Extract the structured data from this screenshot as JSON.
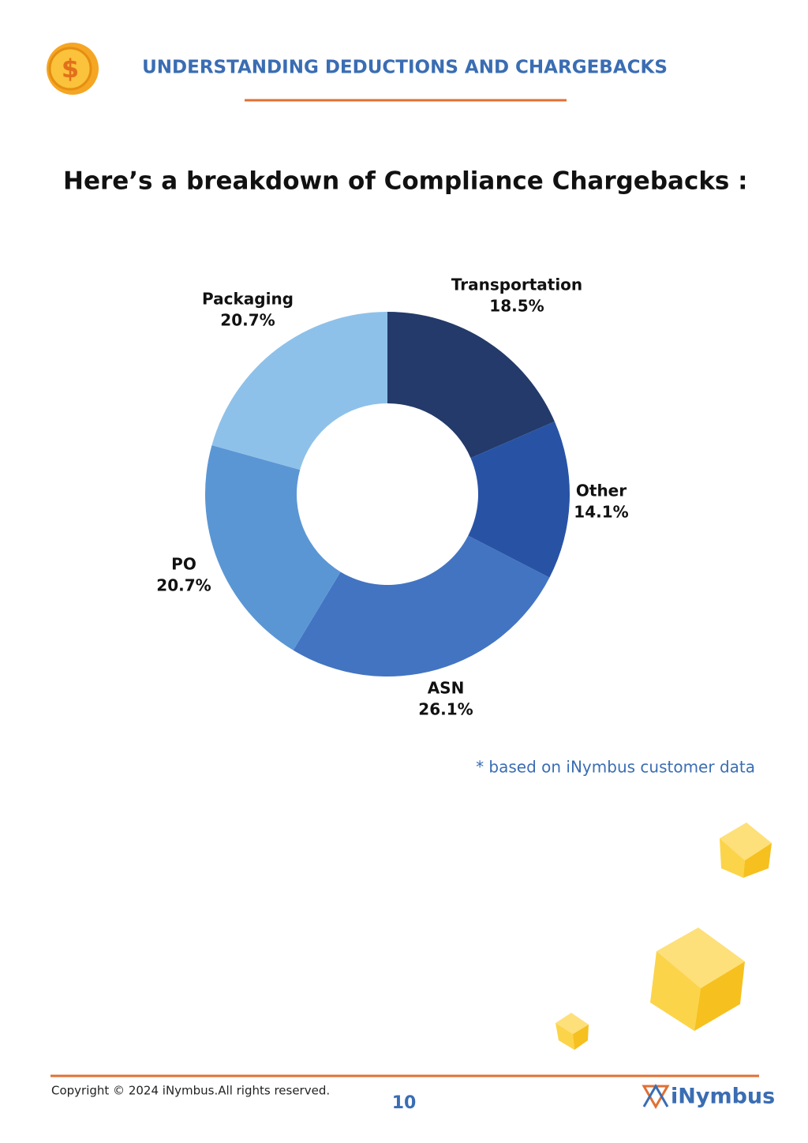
{
  "header": {
    "icon": "$",
    "title": "UNDERSTANDING DEDUCTIONS AND CHARGEBACKS"
  },
  "heading": "Here’s a breakdown of Compliance Chargebacks :",
  "chart_data": {
    "type": "donut",
    "categories": [
      "Transportation",
      "Other",
      "ASN",
      "PO",
      "Packaging"
    ],
    "values": [
      18.5,
      14.1,
      26.1,
      20.7,
      20.7
    ],
    "value_labels": [
      "18.5%",
      "14.1%",
      "26.1%",
      "20.7%",
      "20.7%"
    ],
    "colors": [
      "#233a6a",
      "#2853a5",
      "#4274c2",
      "#5b96d4",
      "#8ec1e9"
    ]
  },
  "note": "* based on iNymbus customer data",
  "footer": {
    "copyright": "Copyright © 2024 iNymbus.All rights reserved.",
    "page": 10,
    "logo": "iNymbus"
  }
}
